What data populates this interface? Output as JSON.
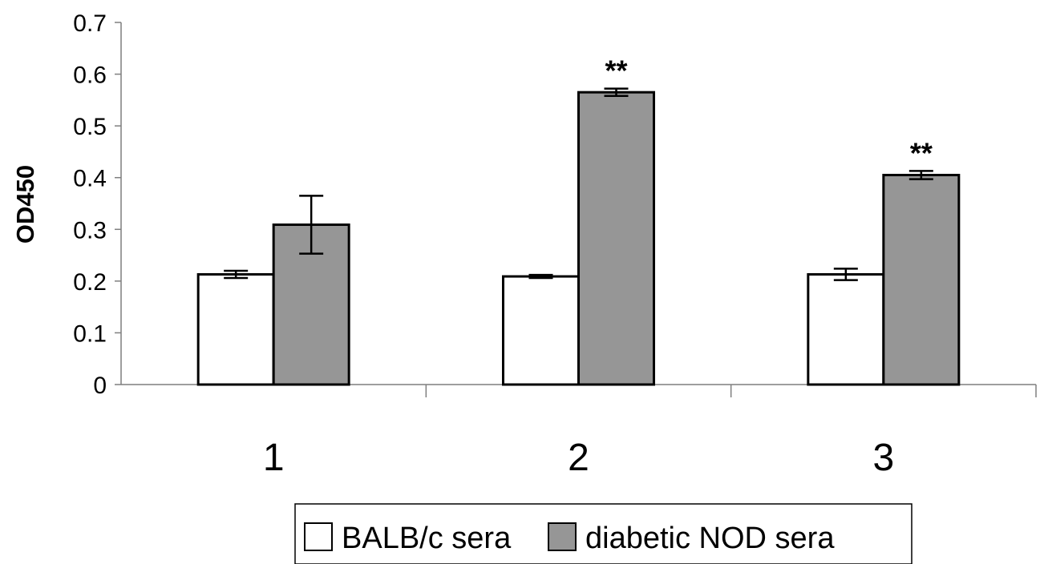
{
  "chart_data": {
    "type": "bar",
    "title": "",
    "xlabel": "",
    "ylabel": "OD450",
    "categories": [
      "1",
      "2",
      "3"
    ],
    "ylim": [
      0,
      0.7
    ],
    "yticks": [
      0,
      0.1,
      0.2,
      0.3,
      0.4,
      0.5,
      0.6,
      0.7
    ],
    "ytick_labels": [
      "0",
      "0.1",
      "0.2",
      "0.3",
      "0.4",
      "0.5",
      "0.6",
      "0.7"
    ],
    "series": [
      {
        "name": "BALB/c sera",
        "values": [
          0.213,
          0.209,
          0.213
        ],
        "errors": [
          0.007,
          0.003,
          0.011
        ],
        "annotations": [
          "",
          "",
          ""
        ],
        "color": "#ffffff"
      },
      {
        "name": "diabetic NOD sera",
        "values": [
          0.309,
          0.565,
          0.405
        ],
        "errors": [
          0.056,
          0.007,
          0.008
        ],
        "annotations": [
          "",
          "**",
          "**"
        ],
        "color": "#969696"
      }
    ],
    "grid": false,
    "legend_position": "bottom"
  }
}
